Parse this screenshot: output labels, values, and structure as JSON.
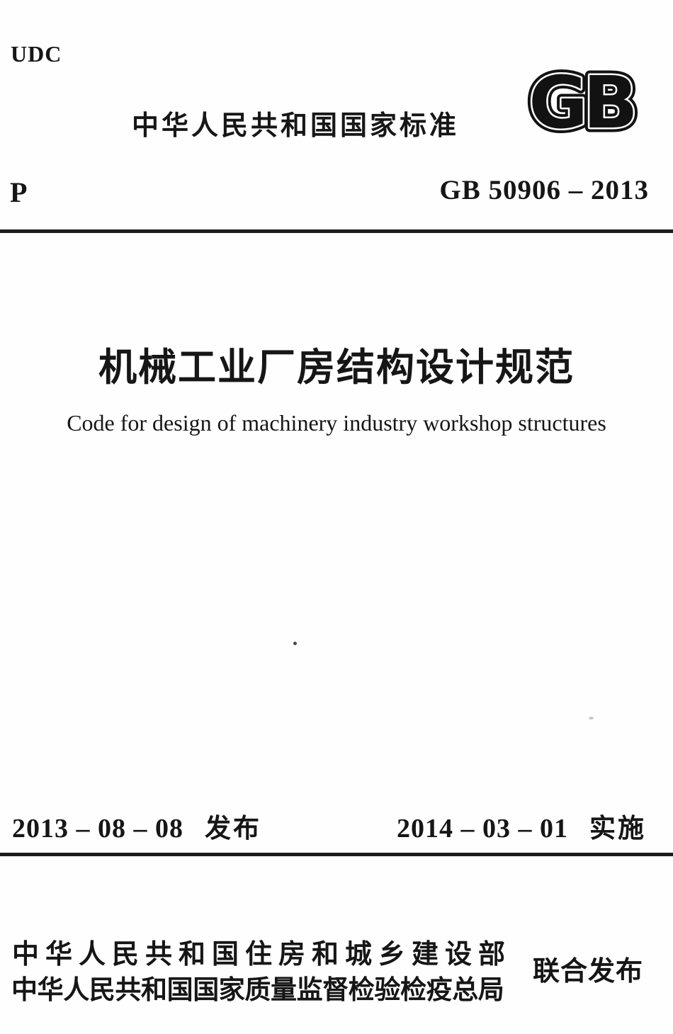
{
  "ink_color": "#161616",
  "header": {
    "udc": "UDC",
    "title": "中华人民共和国国家标准",
    "logo_text": "GB",
    "classification_code": "P",
    "standard_number": "GB 50906 – 2013"
  },
  "title": {
    "chinese": "机械工业厂房结构设计规范",
    "english": "Code for design of machinery industry workshop structures"
  },
  "dates": {
    "issue_date": "2013 – 08 – 08",
    "issue_label": "发布",
    "implement_date": "2014 – 03 – 01",
    "implement_label": "实施"
  },
  "publishers": {
    "line1": "中华人民共和国住房和城乡建设部",
    "line2": "中华人民共和国国家质量监督检验检疫总局",
    "joint_label": "联合发布"
  }
}
